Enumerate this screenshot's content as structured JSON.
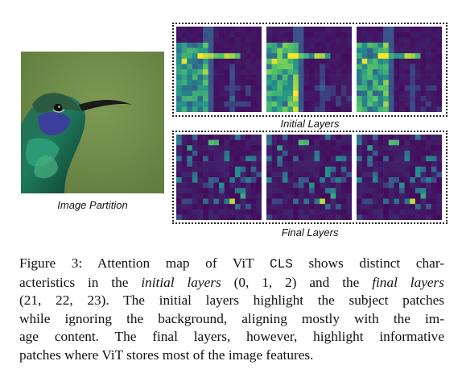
{
  "figure": {
    "image_label": "Image Partition",
    "initial_label": "Initial Layers",
    "final_label": "Final Layers",
    "colors": {
      "map_low": "#3b1f5b",
      "map_mid": "#22908a",
      "map_high": "#f7e43a",
      "frame": "#222222"
    }
  },
  "caption": {
    "p1": "Figure 3: Attention map of ViT ",
    "cls": "CLS",
    "p2": " shows distinct char-",
    "p3": "acteristics in the ",
    "initial_it": "initial layers",
    "p4": " (0, 1, 2) and the ",
    "final_it": "final layers",
    "p5": "(21, 22, 23). The initial layers highlight the subject patches",
    "p6": "while ignoring the background, aligning mostly with the im-",
    "p7": "age content. The final layers, however, highlight informative",
    "p8": "patches where ViT stores most of the image features."
  }
}
